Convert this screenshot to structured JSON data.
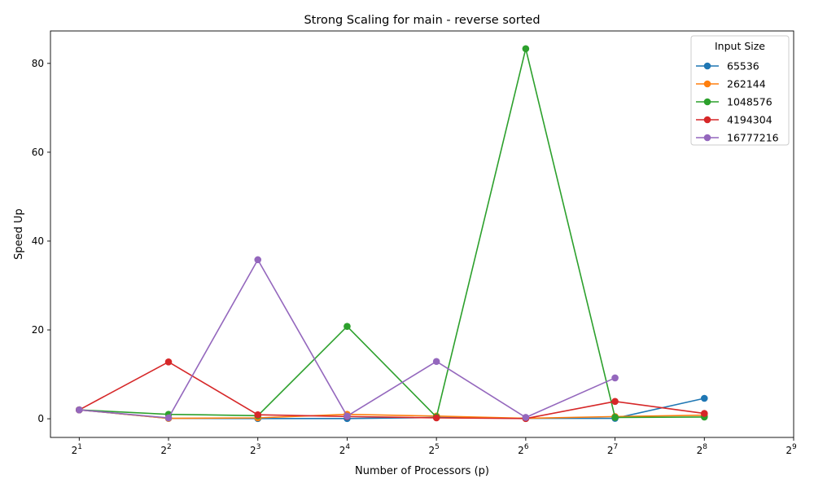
{
  "chart_data": {
    "type": "line",
    "title": "Strong Scaling for main - reverse sorted",
    "xlabel": "Number of Processors (p)",
    "ylabel": "Speed Up",
    "x_scale": "log2",
    "x_ticks": [
      2,
      4,
      8,
      16,
      32,
      64,
      128,
      256,
      512
    ],
    "x_tick_exponents": [
      "1",
      "2",
      "3",
      "4",
      "5",
      "6",
      "7",
      "8",
      "9"
    ],
    "x_tick_base": "2",
    "xlim": [
      1.6,
      512
    ],
    "ylim": [
      -4.2,
      87.3
    ],
    "y_ticks": [
      0,
      20,
      40,
      60,
      80
    ],
    "grid": false,
    "legend": {
      "title": "Input Size",
      "position": "top-right"
    },
    "series": [
      {
        "name": "65536",
        "color": "#1f77b4",
        "points": [
          [
            2,
            2.0
          ],
          [
            4,
            0.1
          ],
          [
            8,
            0.05
          ],
          [
            16,
            0.05
          ],
          [
            32,
            0.3
          ],
          [
            64,
            0.1
          ],
          [
            128,
            0.1
          ],
          [
            256,
            4.6
          ]
        ]
      },
      {
        "name": "262144",
        "color": "#ff7f0e",
        "points": [
          [
            2,
            2.0
          ],
          [
            4,
            0.1
          ],
          [
            8,
            0.2
          ],
          [
            16,
            1.0
          ],
          [
            32,
            0.6
          ],
          [
            64,
            0.1
          ],
          [
            128,
            0.5
          ],
          [
            256,
            0.8
          ]
        ]
      },
      {
        "name": "1048576",
        "color": "#2ca02c",
        "points": [
          [
            2,
            2.0
          ],
          [
            4,
            1.0
          ],
          [
            8,
            0.7
          ],
          [
            16,
            20.8
          ],
          [
            32,
            0.4
          ],
          [
            64,
            83.3
          ],
          [
            128,
            0.3
          ],
          [
            256,
            0.4
          ]
        ]
      },
      {
        "name": "4194304",
        "color": "#d62728",
        "points": [
          [
            2,
            2.0
          ],
          [
            4,
            12.8
          ],
          [
            8,
            0.9
          ],
          [
            16,
            0.5
          ],
          [
            32,
            0.2
          ],
          [
            64,
            0.05
          ],
          [
            128,
            3.9
          ],
          [
            256,
            1.2
          ]
        ]
      },
      {
        "name": "16777216",
        "color": "#9467bd",
        "points": [
          [
            2,
            2.0
          ],
          [
            4,
            0.2
          ],
          [
            8,
            35.8
          ],
          [
            16,
            0.6
          ],
          [
            32,
            12.9
          ],
          [
            64,
            0.3
          ],
          [
            128,
            9.2
          ]
        ]
      }
    ]
  }
}
